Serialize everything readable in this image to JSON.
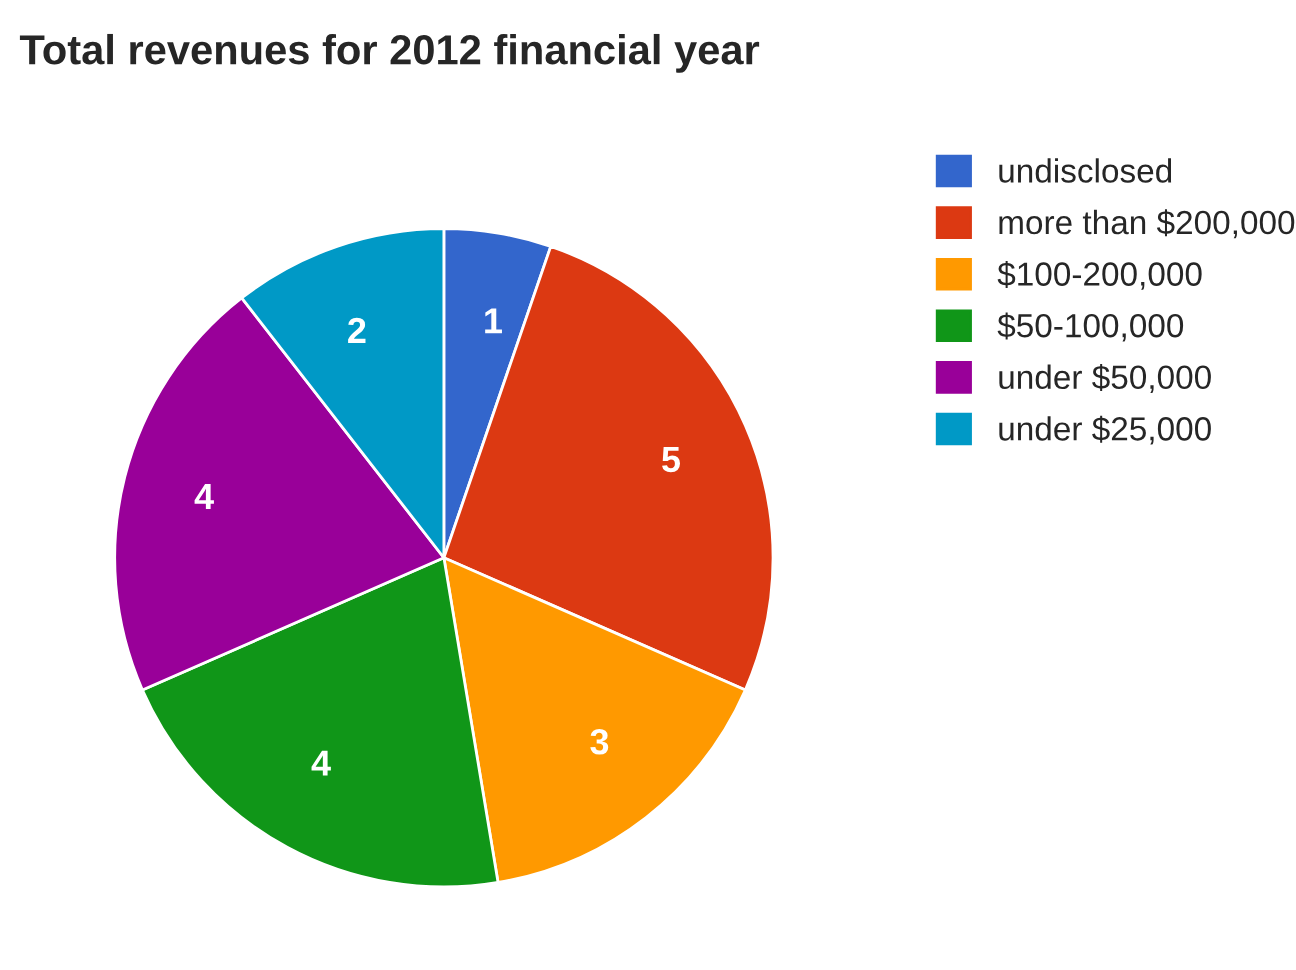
{
  "chart_data": {
    "type": "pie",
    "title": "Total revenues for 2012 financial year",
    "categories": [
      "undisclosed",
      "more than $200,000",
      "$100-200,000",
      "$50-100,000",
      "under $50,000",
      "under $25,000"
    ],
    "values": [
      1,
      5,
      3,
      4,
      4,
      2
    ],
    "colors": [
      "#3366cc",
      "#dc3912",
      "#ff9900",
      "#109618",
      "#990099",
      "#0099c6"
    ],
    "data_labels": true,
    "legend": "right"
  }
}
